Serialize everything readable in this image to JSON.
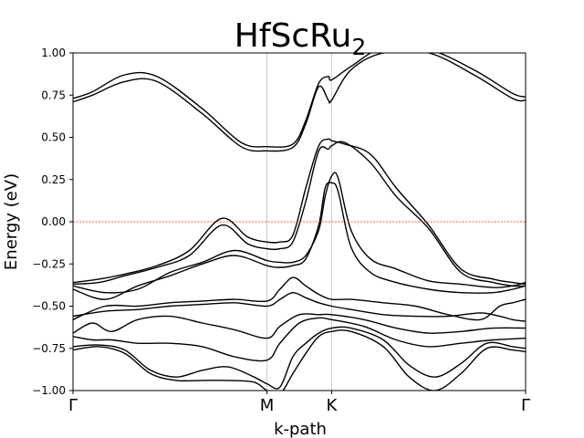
{
  "chart_data": {
    "type": "line",
    "title": "HfScRu",
    "title_subscript": "2",
    "xlabel": "k-path",
    "ylabel": "Energy (eV)",
    "ylim": [
      -1.0,
      1.0
    ],
    "x_range": [
      0,
      7
    ],
    "yticks": [
      "−1.00",
      "−0.75",
      "−0.50",
      "−0.25",
      "0.00",
      "0.25",
      "0.50",
      "0.75",
      "1.00"
    ],
    "ytick_values": [
      -1.0,
      -0.75,
      -0.5,
      -0.25,
      0.0,
      0.25,
      0.5,
      0.75,
      1.0
    ],
    "kpoints": [
      {
        "label": "Γ",
        "x": 0
      },
      {
        "label": "M",
        "x": 3
      },
      {
        "label": "K",
        "x": 4
      },
      {
        "label": "Γ",
        "x": 7
      }
    ],
    "fermi_level": 0.0,
    "colors": {
      "bands": "#000000",
      "fermi": "#e8202a",
      "kline": "#cccccc"
    },
    "series": [
      {
        "x": [
          0,
          0.3,
          0.8,
          1.3,
          2.0,
          2.6,
          3.0,
          3.4,
          3.6,
          3.8,
          3.95,
          4.0,
          4.3,
          4.8,
          5.5,
          6.2,
          6.8,
          7.0
        ],
        "values": [
          0.73,
          0.77,
          0.87,
          0.86,
          0.67,
          0.47,
          0.445,
          0.46,
          0.6,
          0.82,
          0.86,
          0.84,
          0.92,
          1.03,
          1.02,
          0.9,
          0.76,
          0.74
        ]
      },
      {
        "x": [
          0,
          0.3,
          0.8,
          1.3,
          2.0,
          2.6,
          3.0,
          3.4,
          3.6,
          3.8,
          3.95,
          4.0,
          4.3,
          4.8,
          5.5,
          6.2,
          6.8,
          7.0
        ],
        "values": [
          0.71,
          0.75,
          0.83,
          0.83,
          0.64,
          0.445,
          0.42,
          0.44,
          0.58,
          0.8,
          0.72,
          0.72,
          0.9,
          1.0,
          1.0,
          0.87,
          0.73,
          0.72
        ]
      },
      {
        "x": [
          0,
          0.4,
          0.8,
          1.3,
          1.8,
          2.3,
          2.7,
          3.0,
          3.2,
          3.4,
          3.6,
          3.8,
          3.95,
          4.0,
          4.2,
          4.6,
          5.0,
          5.5,
          6.0,
          6.5,
          6.8,
          7.0
        ],
        "values": [
          -0.36,
          -0.34,
          -0.31,
          -0.26,
          -0.17,
          0.02,
          -0.09,
          -0.12,
          -0.12,
          -0.08,
          0.2,
          0.45,
          0.49,
          0.48,
          0.46,
          0.4,
          0.2,
          -0.02,
          -0.28,
          -0.34,
          -0.36,
          -0.37
        ]
      },
      {
        "x": [
          0,
          0.4,
          0.8,
          1.3,
          1.8,
          2.3,
          2.7,
          3.0,
          3.2,
          3.4,
          3.6,
          3.8,
          3.95,
          4.0,
          4.2,
          4.6,
          5.0,
          5.5,
          6.0,
          6.5,
          6.8,
          7.0
        ],
        "values": [
          -0.37,
          -0.36,
          -0.32,
          -0.27,
          -0.2,
          -0.02,
          -0.13,
          -0.16,
          -0.16,
          -0.12,
          0.12,
          0.42,
          0.43,
          0.45,
          0.47,
          0.35,
          0.15,
          -0.04,
          -0.3,
          -0.36,
          -0.38,
          -0.38
        ]
      },
      {
        "x": [
          0,
          0.5,
          1.0,
          1.5,
          2.0,
          2.5,
          3.0,
          3.2,
          3.4,
          3.6,
          3.8,
          3.9,
          4.0,
          4.1,
          4.3,
          4.6,
          5.0,
          5.5,
          6.0,
          6.5,
          6.8,
          7.0
        ],
        "values": [
          -0.38,
          -0.42,
          -0.4,
          -0.3,
          -0.24,
          -0.17,
          -0.23,
          -0.24,
          -0.24,
          -0.2,
          -0.05,
          0.15,
          0.27,
          0.26,
          -0.05,
          -0.22,
          -0.28,
          -0.35,
          -0.37,
          -0.39,
          -0.38,
          -0.36
        ]
      },
      {
        "x": [
          0,
          0.5,
          1.0,
          1.5,
          2.0,
          2.5,
          3.0,
          3.2,
          3.4,
          3.6,
          3.8,
          3.9,
          4.0,
          4.1,
          4.3,
          4.6,
          5.0,
          5.5,
          6.0,
          6.5,
          6.8,
          7.0
        ],
        "values": [
          -0.4,
          -0.46,
          -0.38,
          -0.32,
          -0.25,
          -0.2,
          -0.26,
          -0.27,
          -0.26,
          -0.22,
          -0.02,
          0.2,
          0.23,
          0.18,
          -0.15,
          -0.3,
          -0.36,
          -0.4,
          -0.42,
          -0.42,
          -0.4,
          -0.38
        ]
      },
      {
        "x": [
          0,
          0.5,
          1.0,
          1.5,
          2.0,
          2.5,
          3.0,
          3.2,
          3.4,
          3.6,
          3.8,
          4.0,
          4.3,
          4.8,
          5.3,
          5.8,
          6.3,
          6.6,
          6.8,
          7.0
        ],
        "values": [
          -0.58,
          -0.5,
          -0.5,
          -0.48,
          -0.47,
          -0.46,
          -0.47,
          -0.4,
          -0.33,
          -0.38,
          -0.43,
          -0.46,
          -0.46,
          -0.48,
          -0.5,
          -0.55,
          -0.58,
          -0.5,
          -0.48,
          -0.46
        ]
      },
      {
        "x": [
          0,
          0.5,
          1.0,
          1.5,
          2.0,
          2.5,
          3.0,
          3.2,
          3.4,
          3.6,
          3.8,
          4.0,
          4.3,
          4.8,
          5.3,
          5.8,
          6.3,
          6.6,
          6.8,
          7.0
        ],
        "values": [
          -0.56,
          -0.53,
          -0.52,
          -0.5,
          -0.49,
          -0.48,
          -0.5,
          -0.46,
          -0.42,
          -0.45,
          -0.48,
          -0.5,
          -0.52,
          -0.55,
          -0.56,
          -0.56,
          -0.54,
          -0.56,
          -0.58,
          -0.59
        ]
      },
      {
        "x": [
          0,
          0.3,
          0.6,
          1.0,
          1.5,
          2.0,
          2.5,
          3.0,
          3.2,
          3.5,
          3.8,
          4.0,
          4.5,
          5.0,
          5.5,
          6.0,
          6.5,
          7.0
        ],
        "values": [
          -0.66,
          -0.6,
          -0.65,
          -0.58,
          -0.56,
          -0.6,
          -0.64,
          -0.69,
          -0.62,
          -0.55,
          -0.55,
          -0.55,
          -0.58,
          -0.63,
          -0.66,
          -0.65,
          -0.63,
          -0.63
        ]
      },
      {
        "x": [
          0,
          0.3,
          0.6,
          1.0,
          1.5,
          2.0,
          2.5,
          3.0,
          3.2,
          3.5,
          3.8,
          4.0,
          4.5,
          5.0,
          5.5,
          6.0,
          6.5,
          7.0
        ],
        "values": [
          -0.68,
          -0.7,
          -0.7,
          -0.72,
          -0.72,
          -0.74,
          -0.8,
          -0.82,
          -0.72,
          -0.6,
          -0.57,
          -0.58,
          -0.62,
          -0.7,
          -0.74,
          -0.72,
          -0.7,
          -0.69
        ]
      },
      {
        "x": [
          0,
          0.4,
          0.8,
          1.2,
          1.6,
          2.0,
          2.4,
          2.8,
          3.0,
          3.2,
          3.4,
          3.6,
          3.8,
          4.0,
          4.3,
          4.8,
          5.2,
          5.6,
          6.0,
          6.4,
          6.8,
          7.0
        ],
        "values": [
          -0.74,
          -0.73,
          -0.76,
          -0.88,
          -0.92,
          -0.88,
          -0.86,
          -0.92,
          -0.96,
          -0.98,
          -0.8,
          -0.72,
          -0.66,
          -0.63,
          -0.63,
          -0.7,
          -0.85,
          -0.92,
          -0.84,
          -0.72,
          -0.74,
          -0.75
        ]
      },
      {
        "x": [
          0,
          0.4,
          0.8,
          1.2,
          1.6,
          2.0,
          2.4,
          2.8,
          3.0,
          3.2,
          3.4,
          3.6,
          3.8,
          4.0,
          4.3,
          4.8,
          5.2,
          5.6,
          6.0,
          6.4,
          6.8,
          7.0
        ],
        "values": [
          -0.76,
          -0.74,
          -0.78,
          -0.9,
          -0.94,
          -0.94,
          -0.94,
          -0.95,
          -1.0,
          -1.02,
          -0.9,
          -0.78,
          -0.68,
          -0.65,
          -0.65,
          -0.74,
          -0.92,
          -1.0,
          -0.9,
          -0.75,
          -0.76,
          -0.77
        ]
      }
    ]
  }
}
